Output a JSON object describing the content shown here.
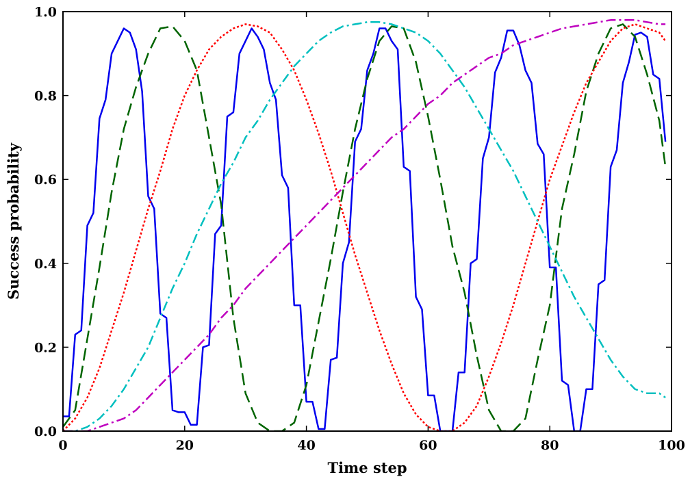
{
  "chart_data": {
    "type": "line",
    "title": "",
    "xlabel": "Time step",
    "ylabel": "Success probability",
    "xlim": [
      0,
      100
    ],
    "ylim": [
      0.0,
      1.0
    ],
    "grid": false,
    "legend": "none",
    "x_ticks": [
      "0",
      "20",
      "40",
      "60",
      "80",
      "100"
    ],
    "y_ticks": [
      "0.0",
      "0.2",
      "0.4",
      "0.6",
      "0.8",
      "1.0"
    ],
    "series": [
      {
        "color": "#0000ee",
        "style": "solid",
        "x": [
          0,
          1,
          2,
          3,
          4,
          5,
          6,
          7,
          8,
          9,
          10,
          11,
          12,
          13,
          14,
          15,
          16,
          17,
          18,
          19,
          20,
          21,
          22,
          23,
          24,
          25,
          26,
          27,
          28,
          29,
          30,
          31,
          32,
          33,
          34,
          35,
          36,
          37,
          38,
          39,
          40,
          41,
          42,
          43,
          44,
          45,
          46,
          47,
          48,
          49,
          50,
          51,
          52,
          53,
          54,
          55,
          56,
          57,
          58,
          59,
          60,
          61,
          62,
          63,
          64,
          65,
          66,
          67,
          68,
          69,
          70,
          71,
          72,
          73,
          74,
          75,
          76,
          77,
          78,
          79,
          80,
          81,
          82,
          83,
          84,
          85,
          86,
          87,
          88,
          89,
          90,
          91,
          92,
          93,
          94,
          95,
          96,
          97,
          98,
          99
        ],
        "values": [
          0.035,
          0.035,
          0.23,
          0.24,
          0.49,
          0.52,
          0.745,
          0.79,
          0.9,
          0.93,
          0.96,
          0.95,
          0.91,
          0.81,
          0.56,
          0.53,
          0.28,
          0.27,
          0.05,
          0.045,
          0.045,
          0.015,
          0.015,
          0.2,
          0.205,
          0.47,
          0.49,
          0.75,
          0.76,
          0.9,
          0.93,
          0.96,
          0.94,
          0.91,
          0.83,
          0.79,
          0.61,
          0.58,
          0.3,
          0.3,
          0.07,
          0.07,
          0.005,
          0.005,
          0.17,
          0.175,
          0.4,
          0.45,
          0.69,
          0.72,
          0.86,
          0.9,
          0.96,
          0.96,
          0.93,
          0.91,
          0.63,
          0.62,
          0.32,
          0.29,
          0.085,
          0.085,
          0.0,
          0.0,
          0.0,
          0.14,
          0.14,
          0.4,
          0.41,
          0.65,
          0.7,
          0.855,
          0.89,
          0.955,
          0.955,
          0.92,
          0.86,
          0.83,
          0.685,
          0.66,
          0.39,
          0.39,
          0.12,
          0.11,
          0.0,
          0.0,
          0.1,
          0.1,
          0.35,
          0.36,
          0.63,
          0.67,
          0.83,
          0.88,
          0.945,
          0.95,
          0.94,
          0.85,
          0.84,
          0.69
        ]
      },
      {
        "color": "#006400",
        "style": "dashed",
        "x": [
          0,
          2,
          4,
          6,
          8,
          10,
          12,
          14,
          16,
          18,
          20,
          22,
          24,
          26,
          28,
          30,
          32,
          34,
          36,
          38,
          40,
          42,
          44,
          46,
          48,
          50,
          52,
          54,
          56,
          58,
          60,
          62,
          64,
          66,
          68,
          70,
          72,
          74,
          76,
          78,
          80,
          82,
          84,
          86,
          88,
          90,
          92,
          94,
          96,
          98,
          99
        ],
        "values": [
          0.01,
          0.05,
          0.22,
          0.39,
          0.57,
          0.72,
          0.82,
          0.9,
          0.96,
          0.965,
          0.93,
          0.86,
          0.7,
          0.54,
          0.27,
          0.09,
          0.02,
          0.0,
          0.0,
          0.02,
          0.11,
          0.26,
          0.41,
          0.57,
          0.72,
          0.84,
          0.93,
          0.965,
          0.96,
          0.88,
          0.75,
          0.6,
          0.44,
          0.33,
          0.18,
          0.05,
          0.0,
          0.0,
          0.03,
          0.17,
          0.3,
          0.53,
          0.66,
          0.81,
          0.9,
          0.96,
          0.97,
          0.94,
          0.85,
          0.74,
          0.63
        ]
      },
      {
        "color": "#ff0000",
        "style": "dotted",
        "x": [
          0,
          2,
          4,
          6,
          8,
          10,
          12,
          14,
          16,
          18,
          20,
          22,
          24,
          26,
          28,
          30,
          32,
          34,
          36,
          38,
          40,
          42,
          44,
          46,
          48,
          50,
          52,
          54,
          56,
          58,
          60,
          62,
          64,
          66,
          68,
          70,
          72,
          74,
          76,
          78,
          80,
          82,
          84,
          86,
          88,
          90,
          92,
          94,
          96,
          98,
          99
        ],
        "values": [
          0.0,
          0.03,
          0.08,
          0.15,
          0.24,
          0.33,
          0.43,
          0.53,
          0.62,
          0.72,
          0.8,
          0.86,
          0.91,
          0.94,
          0.96,
          0.97,
          0.965,
          0.95,
          0.91,
          0.86,
          0.79,
          0.71,
          0.62,
          0.52,
          0.42,
          0.33,
          0.24,
          0.16,
          0.09,
          0.04,
          0.01,
          0.0,
          0.0,
          0.02,
          0.06,
          0.13,
          0.21,
          0.3,
          0.4,
          0.5,
          0.6,
          0.68,
          0.76,
          0.83,
          0.88,
          0.93,
          0.96,
          0.97,
          0.96,
          0.95,
          0.93
        ]
      },
      {
        "color": "#00bfbf",
        "style": "dashdot",
        "x": [
          0,
          2,
          4,
          6,
          8,
          10,
          12,
          14,
          16,
          18,
          20,
          22,
          24,
          26,
          28,
          30,
          32,
          34,
          36,
          38,
          40,
          42,
          44,
          46,
          48,
          50,
          52,
          54,
          56,
          58,
          60,
          62,
          64,
          66,
          68,
          70,
          72,
          74,
          76,
          78,
          80,
          82,
          84,
          86,
          88,
          90,
          92,
          94,
          96,
          98,
          99
        ],
        "values": [
          0.0,
          0.0,
          0.01,
          0.03,
          0.06,
          0.1,
          0.15,
          0.2,
          0.27,
          0.34,
          0.4,
          0.47,
          0.53,
          0.59,
          0.64,
          0.7,
          0.74,
          0.79,
          0.83,
          0.87,
          0.9,
          0.93,
          0.95,
          0.965,
          0.97,
          0.975,
          0.975,
          0.97,
          0.96,
          0.95,
          0.93,
          0.9,
          0.86,
          0.82,
          0.77,
          0.72,
          0.67,
          0.62,
          0.56,
          0.5,
          0.44,
          0.38,
          0.32,
          0.27,
          0.22,
          0.17,
          0.13,
          0.1,
          0.09,
          0.09,
          0.08
        ]
      },
      {
        "color": "#bf00bf",
        "style": "dashdot",
        "x": [
          0,
          2,
          4,
          6,
          8,
          10,
          12,
          14,
          16,
          18,
          20,
          22,
          24,
          26,
          28,
          30,
          32,
          34,
          36,
          38,
          40,
          42,
          44,
          46,
          48,
          50,
          52,
          54,
          56,
          58,
          60,
          62,
          64,
          66,
          68,
          70,
          72,
          74,
          76,
          78,
          80,
          82,
          84,
          86,
          88,
          90,
          92,
          94,
          96,
          98,
          99
        ],
        "values": [
          0.0,
          0.0,
          0.0,
          0.01,
          0.02,
          0.03,
          0.05,
          0.08,
          0.11,
          0.14,
          0.17,
          0.2,
          0.23,
          0.27,
          0.3,
          0.34,
          0.37,
          0.4,
          0.43,
          0.46,
          0.49,
          0.52,
          0.55,
          0.58,
          0.61,
          0.64,
          0.67,
          0.7,
          0.72,
          0.75,
          0.78,
          0.8,
          0.83,
          0.85,
          0.87,
          0.89,
          0.9,
          0.92,
          0.93,
          0.94,
          0.95,
          0.96,
          0.965,
          0.97,
          0.975,
          0.98,
          0.98,
          0.98,
          0.975,
          0.97,
          0.97
        ]
      }
    ]
  }
}
